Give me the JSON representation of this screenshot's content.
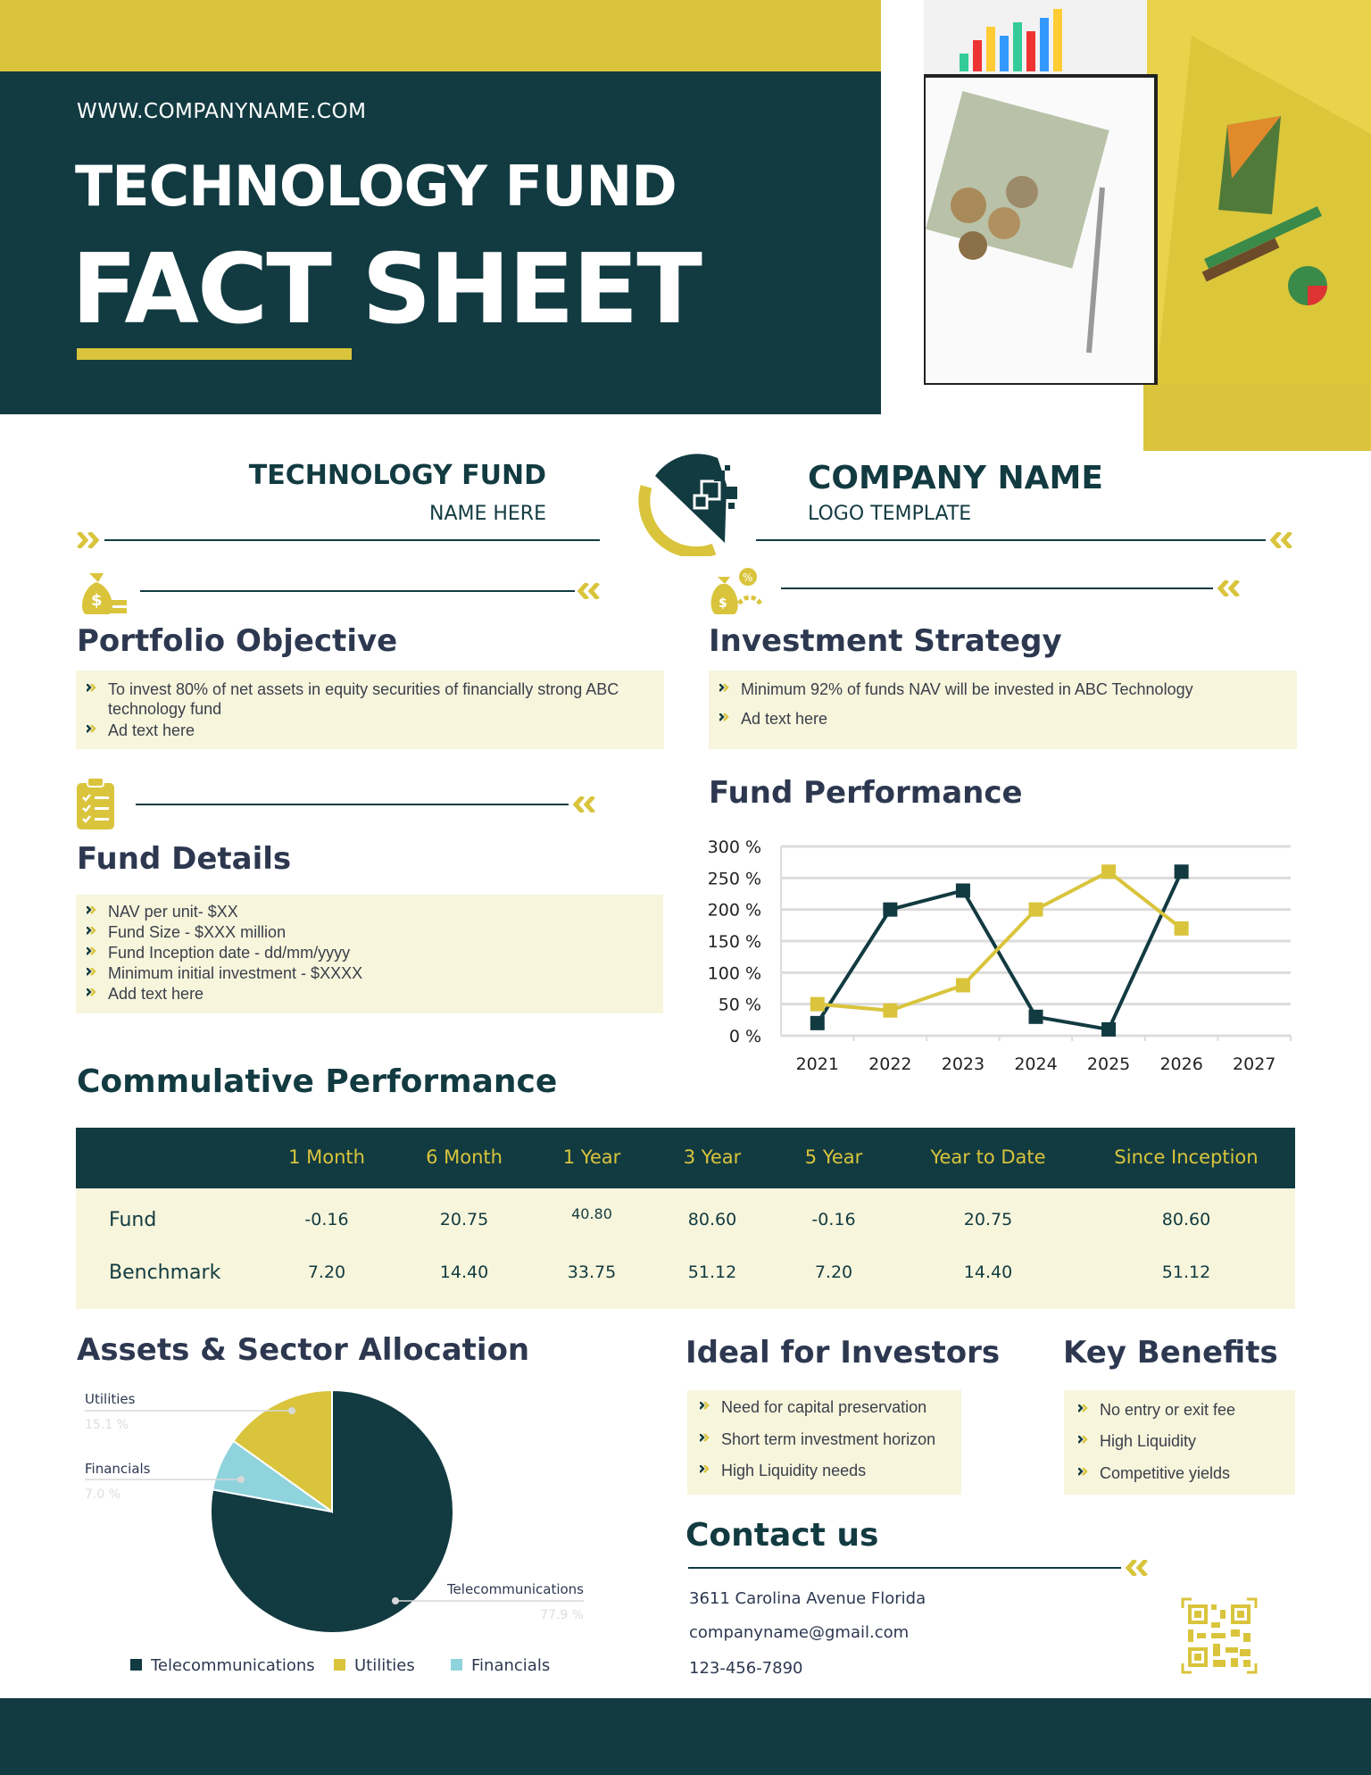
{
  "header": {
    "url": "WWW.COMPANYNAME.COM",
    "title_line1": "TECHNOLOGY FUND",
    "title_line2": "FACT SHEET"
  },
  "brand": {
    "fund_name": "TECHNOLOGY FUND",
    "fund_sub": "NAME HERE",
    "company_name": "COMPANY NAME",
    "company_sub": "LOGO TEMPLATE"
  },
  "colors": {
    "dark": "#123b41",
    "accent": "#d9c43c",
    "cream": "#f7f5dc",
    "cyan": "#8fd3dd"
  },
  "portfolio": {
    "title": "Portfolio Objective",
    "items": [
      "To invest 80% of net assets in equity securities of financially strong ABC technology fund",
      "Ad text here"
    ]
  },
  "strategy": {
    "title": "Investment Strategy",
    "items": [
      "Minimum 92% of funds NAV will be invested in ABC  Technology",
      "Ad text here"
    ]
  },
  "details": {
    "title": "Fund Details",
    "items": [
      "NAV per unit- $XX",
      "Fund Size - $XXX million",
      "Fund Inception date - dd/mm/yyyy",
      "Minimum initial investment - $XXXX",
      "Add text here"
    ]
  },
  "performance": {
    "title": "Fund Performance"
  },
  "chart_data": [
    {
      "type": "line",
      "categories": [
        "2021",
        "2022",
        "2023",
        "2024",
        "2025",
        "2026",
        "2027"
      ],
      "yticks": [
        "0 %",
        "50 %",
        "100 %",
        "150 %",
        "200 %",
        "250 %",
        "300 %"
      ],
      "ylim": [
        0,
        300
      ],
      "grid": true,
      "series": [
        {
          "values": [
            20,
            200,
            230,
            30,
            10,
            260,
            null
          ],
          "color": "#123b41"
        },
        {
          "values": [
            50,
            40,
            80,
            200,
            260,
            170,
            null
          ],
          "color": "#d9c43c"
        },
        {
          "values": [
            50,
            40,
            null,
            null,
            null,
            null,
            null
          ],
          "color": "#c8c8c8"
        }
      ]
    },
    {
      "type": "pie",
      "slices": [
        {
          "label": "Telecommunications",
          "value": 77.9,
          "pct": "77.9 %",
          "color": "#123b41"
        },
        {
          "label": "Financials",
          "value": 7.0,
          "pct": "7.0 %",
          "color": "#8fd3dd"
        },
        {
          "label": "Utilities",
          "value": 15.1,
          "pct": "15.1 %",
          "color": "#d9c43c"
        }
      ],
      "legend": [
        "Telecommunications",
        "Utilities",
        "Financials"
      ],
      "legend_placement": "bottom"
    }
  ],
  "cumulative": {
    "title": "Commulative Performance",
    "columns": [
      "1 Month",
      "6 Month",
      "1 Year",
      "3 Year",
      "5 Year",
      "Year to Date",
      "Since Inception"
    ],
    "rows": [
      {
        "label": "Fund",
        "values": [
          "-0.16",
          "20.75",
          "40.80",
          "80.60",
          "-0.16",
          "20.75",
          "80.60"
        ]
      },
      {
        "label": "Benchmark",
        "values": [
          "7.20",
          "14.40",
          "33.75",
          "51.12",
          "7.20",
          "14.40",
          "51.12"
        ]
      }
    ]
  },
  "allocation": {
    "title": "Assets & Sector Allocation"
  },
  "ideal": {
    "title": "Ideal for Investors",
    "items": [
      "Need for capital preservation",
      "Short term investment horizon",
      "High Liquidity needs"
    ]
  },
  "benefits": {
    "title": "Key Benefits",
    "items": [
      "No entry or exit fee",
      "High Liquidity",
      "Competitive yields"
    ]
  },
  "contact": {
    "title": "Contact us",
    "address": "3611 Carolina Avenue Florida",
    "email": "companyname@gmail.com",
    "phone": "123-456-7890"
  }
}
